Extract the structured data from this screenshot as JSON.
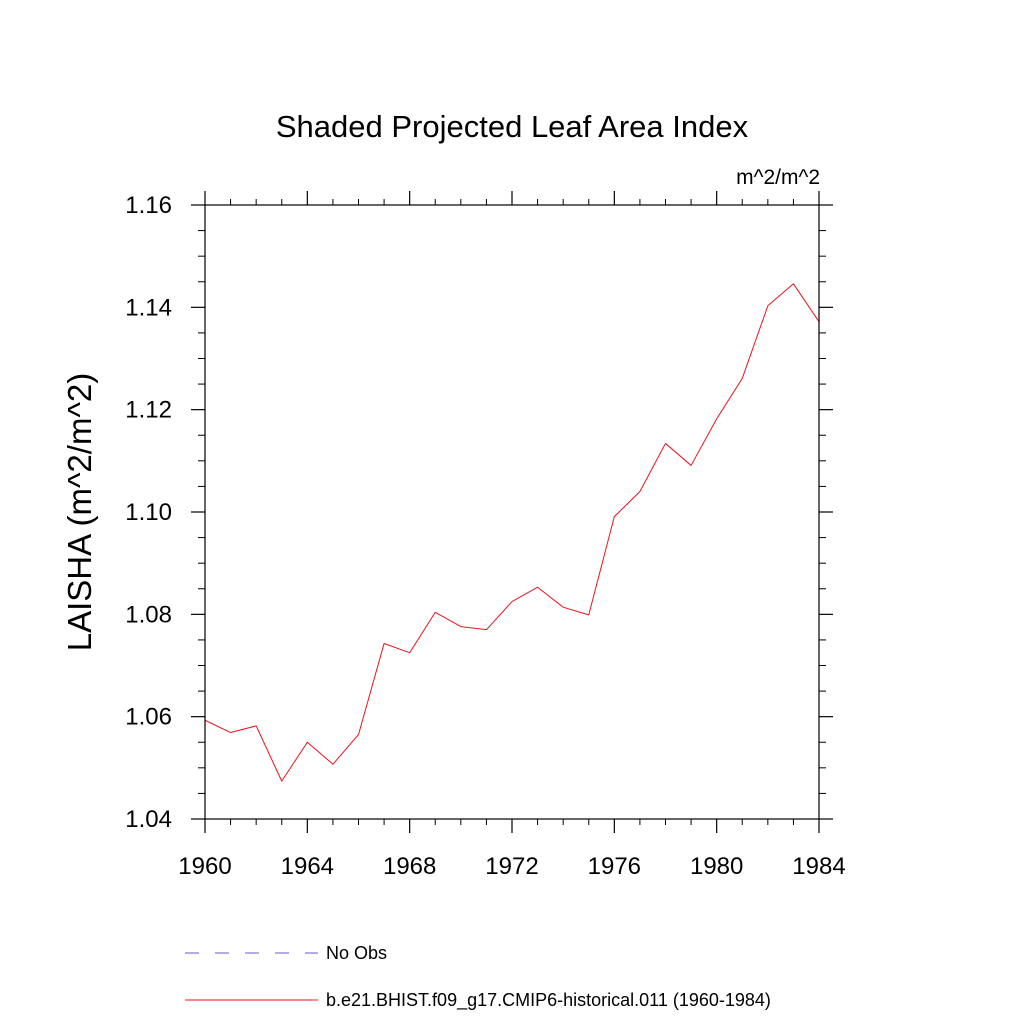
{
  "chart_data": {
    "type": "line",
    "title": "Shaded Projected Leaf Area Index",
    "units": "m^2/m^2",
    "ylabel": "LAISHA  (m^2/m^2)",
    "xlabel": "",
    "xlim": [
      1960,
      1984
    ],
    "ylim": [
      1.04,
      1.16
    ],
    "x_ticks": [
      "1960",
      "1964",
      "1968",
      "1972",
      "1976",
      "1980",
      "1984"
    ],
    "y_ticks": [
      "1.04",
      "1.06",
      "1.08",
      "1.10",
      "1.12",
      "1.14",
      "1.16"
    ],
    "x": [
      1960,
      1961,
      1962,
      1963,
      1964,
      1965,
      1966,
      1967,
      1968,
      1969,
      1970,
      1971,
      1972,
      1973,
      1974,
      1975,
      1976,
      1977,
      1978,
      1979,
      1980,
      1981,
      1982,
      1983,
      1984
    ],
    "series": [
      {
        "name": "b.e21.BHIST.f09_g17.CMIP6-historical.011 (1960-1984)",
        "color": "#e8141e",
        "style": "solid",
        "values": [
          1.0593,
          1.0569,
          1.0582,
          1.0474,
          1.055,
          1.0507,
          1.0565,
          1.0743,
          1.0725,
          1.0804,
          1.0776,
          1.077,
          1.0825,
          1.0853,
          1.0814,
          1.0799,
          1.0991,
          1.104,
          1.1134,
          1.1091,
          1.1182,
          1.1261,
          1.1403,
          1.1446,
          1.1372
        ]
      }
    ],
    "legend": [
      {
        "label": "No Obs",
        "color": "#6a5acd",
        "style": "dashed"
      },
      {
        "label": "b.e21.BHIST.f09_g17.CMIP6-historical.011 (1960-1984)",
        "color": "#e8141e",
        "style": "solid"
      }
    ],
    "legend_position": "bottom",
    "grid": false
  }
}
